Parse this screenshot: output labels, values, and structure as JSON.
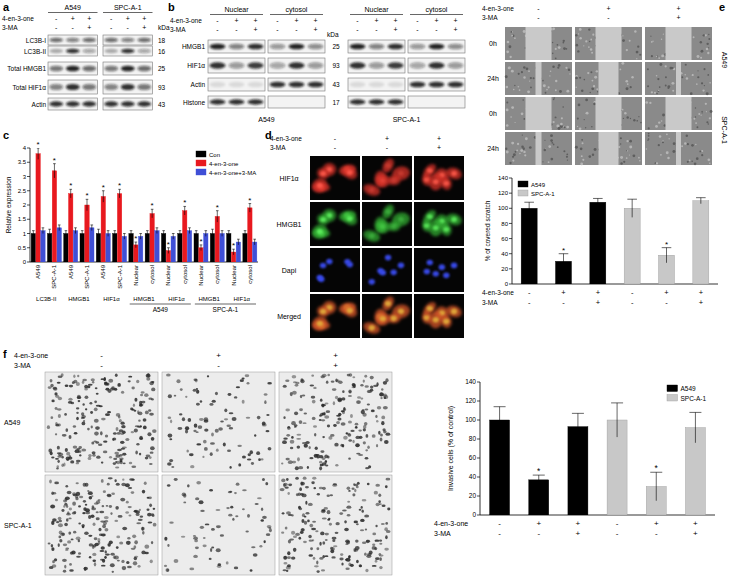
{
  "chart_data": [
    {
      "type": "bar",
      "panel_label": "c",
      "y_label": "Relative expression",
      "ylim": [
        0,
        4
      ],
      "yticks": [
        0,
        0.5,
        1,
        1.5,
        2,
        2.5,
        3,
        3.5,
        4
      ],
      "categories": [
        "A549",
        "SPC-A-1",
        "A549",
        "SPC-A-1",
        "A549",
        "SPC-A-1",
        "Nuclear",
        "cytosol",
        "Nuclear",
        "cytosol",
        "Nuclear",
        "cytosol",
        "Nuclear",
        "cytosol"
      ],
      "groups": [
        {
          "label": "LC3B-II",
          "size": 2
        },
        {
          "label": "HMGB1",
          "size": 2
        },
        {
          "label": "HIF1α",
          "size": 2
        },
        {
          "label": "HMGB1",
          "size": 2
        },
        {
          "label": "HIF1α",
          "size": 2
        },
        {
          "label": "HMGB1",
          "size": 2
        },
        {
          "label": "HIF1α",
          "size": 2
        }
      ],
      "supergroups": [
        {
          "label": "A549",
          "first_group": 3,
          "size": 2
        },
        {
          "label": "SPC-A-1",
          "first_group": 5,
          "size": 2
        }
      ],
      "series": [
        {
          "name": "Con",
          "color": "#000000",
          "values": [
            1,
            1,
            1,
            1,
            1,
            1,
            1,
            1,
            1,
            1,
            1,
            1,
            1,
            1
          ],
          "errors": [
            0.1,
            0.15,
            0.1,
            0.1,
            0.15,
            0.1,
            0.1,
            0.1,
            0.1,
            0.1,
            0.1,
            0.15,
            0.1,
            0.1
          ]
        },
        {
          "name": "4-en-3-one",
          "color": "#e8191f",
          "values": [
            3.8,
            3.2,
            2.4,
            2.0,
            2.3,
            2.4,
            0.6,
            1.7,
            0.4,
            1.8,
            0.5,
            1.6,
            0.35,
            1.9
          ],
          "errors": [
            0.2,
            0.25,
            0.15,
            0.2,
            0.2,
            0.15,
            0.1,
            0.15,
            0.1,
            0.15,
            0.1,
            0.2,
            0.1,
            0.15
          ],
          "significant": [
            true,
            true,
            true,
            true,
            true,
            true,
            true,
            true,
            true,
            true,
            true,
            true,
            true,
            true
          ]
        },
        {
          "name": "4-en-3-one+3-MA",
          "color": "#3f4fd6",
          "values": [
            1.1,
            1.2,
            1.1,
            1.2,
            1.0,
            0.9,
            0.9,
            1.1,
            0.9,
            1.1,
            1.0,
            1.0,
            0.7,
            0.7
          ],
          "errors": [
            0.1,
            0.1,
            0.1,
            0.1,
            0.1,
            0.1,
            0.1,
            0.1,
            0.1,
            0.1,
            0.1,
            0.1,
            0.1,
            0.1
          ]
        }
      ],
      "legend": "top-right",
      "significance_label": "*"
    },
    {
      "type": "bar",
      "y_label": "% of covered scratch",
      "ylim": [
        0,
        140
      ],
      "yticks": [
        0,
        20,
        40,
        60,
        80,
        100,
        120,
        140
      ],
      "categories": [
        null,
        null,
        null,
        null,
        null,
        null
      ],
      "x_rows": [
        {
          "label": "4-en-3-one",
          "signs": [
            "-",
            "+",
            "+",
            "-",
            "+",
            "+"
          ]
        },
        {
          "label": "3-MA",
          "signs": [
            "-",
            "-",
            "+",
            "-",
            "-",
            "+"
          ]
        }
      ],
      "series": [
        {
          "name": "A549",
          "color": "#000000",
          "values": [
            100,
            30,
            108,
            null,
            null,
            null
          ],
          "errors": [
            8,
            10,
            5,
            null,
            null,
            null
          ],
          "significant": [
            false,
            true,
            false,
            null,
            null,
            null
          ]
        },
        {
          "name": "SPC-A-1",
          "color": "#c8c8c8",
          "values": [
            null,
            null,
            null,
            100,
            38,
            110
          ],
          "errors": [
            null,
            null,
            null,
            12,
            10,
            4
          ],
          "significant": [
            null,
            null,
            null,
            false,
            true,
            false
          ]
        }
      ],
      "legend": "top-left",
      "significance_label": "*"
    },
    {
      "type": "bar",
      "y_label": "Invasive cells (% of control)",
      "ylim": [
        0,
        140
      ],
      "yticks": [
        0,
        20,
        40,
        60,
        80,
        100,
        120,
        140
      ],
      "categories": [
        null,
        null,
        null,
        null,
        null,
        null
      ],
      "x_rows": [
        {
          "label": "4-en-3-one",
          "signs": [
            "-",
            "+",
            "+",
            "-",
            "+",
            "+"
          ]
        },
        {
          "label": "3-MA",
          "signs": [
            "-",
            "-",
            "+",
            "-",
            "-",
            "+"
          ]
        }
      ],
      "series": [
        {
          "name": "A549",
          "color": "#000000",
          "values": [
            100,
            37,
            93,
            null,
            null,
            null
          ],
          "errors": [
            14,
            5,
            14,
            null,
            null,
            null
          ],
          "significant": [
            false,
            true,
            false,
            null,
            null,
            null
          ]
        },
        {
          "name": "SPC-A-1",
          "color": "#c8c8c8",
          "values": [
            null,
            null,
            null,
            100,
            30,
            92
          ],
          "errors": [
            null,
            null,
            null,
            18,
            15,
            16
          ],
          "significant": [
            null,
            null,
            null,
            false,
            true,
            false
          ]
        }
      ],
      "legend": "top-right",
      "significance_label": "*"
    }
  ],
  "panels": {
    "a": {
      "label": "a",
      "cell_lines": [
        "A549",
        "SPC-A-1"
      ],
      "treatments": [
        {
          "label": "4-en-3-one",
          "signs": [
            "-",
            "+",
            "+"
          ]
        },
        {
          "label": "3-MA",
          "signs": [
            "-",
            "-",
            "+"
          ]
        }
      ],
      "rows": [
        {
          "label": "LC3B-I",
          "kda": 18
        },
        {
          "label": "LC3B-II",
          "kda": 16
        },
        {
          "label": "Total HMGB1",
          "kda": 25
        },
        {
          "label": "Total HIF1α",
          "kda": 93
        },
        {
          "label": "Actin",
          "kda": 43
        }
      ],
      "kda_header": "kDa"
    },
    "b": {
      "label": "b",
      "cell_lines": [
        "A549",
        "SPC-A-1"
      ],
      "fractions": [
        "Nuclear",
        "cytosol"
      ],
      "treatments": [
        {
          "label": "4-en-3-one",
          "signs": [
            "-",
            "+",
            "+"
          ]
        },
        {
          "label": "3-MA",
          "signs": [
            "-",
            "-",
            "+"
          ]
        }
      ],
      "rows": [
        {
          "label": "HMGB1",
          "kda": 25
        },
        {
          "label": "HIF1α",
          "kda": 93
        },
        {
          "label": "Actin",
          "kda": 43
        },
        {
          "label": "Histone",
          "kda": 17
        }
      ],
      "kda_header": "kDa"
    },
    "d": {
      "label": "d",
      "treatments": [
        {
          "label": "4-en-3-one",
          "signs": [
            "-",
            "+",
            "+"
          ]
        },
        {
          "label": "3-MA",
          "signs": [
            "-",
            "-",
            "+"
          ]
        }
      ],
      "channels": [
        "HIF1α",
        "HMGB1",
        "Dapi",
        "Merged"
      ]
    },
    "e": {
      "label": "e",
      "treatments": [
        {
          "label": "4-en-3-one",
          "signs": [
            "-",
            "+",
            "+"
          ]
        },
        {
          "label": "3-MA",
          "signs": [
            "-",
            "-",
            "+"
          ]
        }
      ],
      "cell_lines": [
        "A549",
        "SPC-A-1"
      ],
      "timepoints": [
        "0h",
        "24h"
      ]
    },
    "f": {
      "label": "f",
      "treatments": [
        {
          "label": "4-en-3-one",
          "signs": [
            "-",
            "+",
            "+"
          ]
        },
        {
          "label": "3-MA",
          "signs": [
            "-",
            "-",
            "+"
          ]
        }
      ],
      "cell_lines": [
        "A549",
        "SPC-A-1"
      ]
    }
  }
}
